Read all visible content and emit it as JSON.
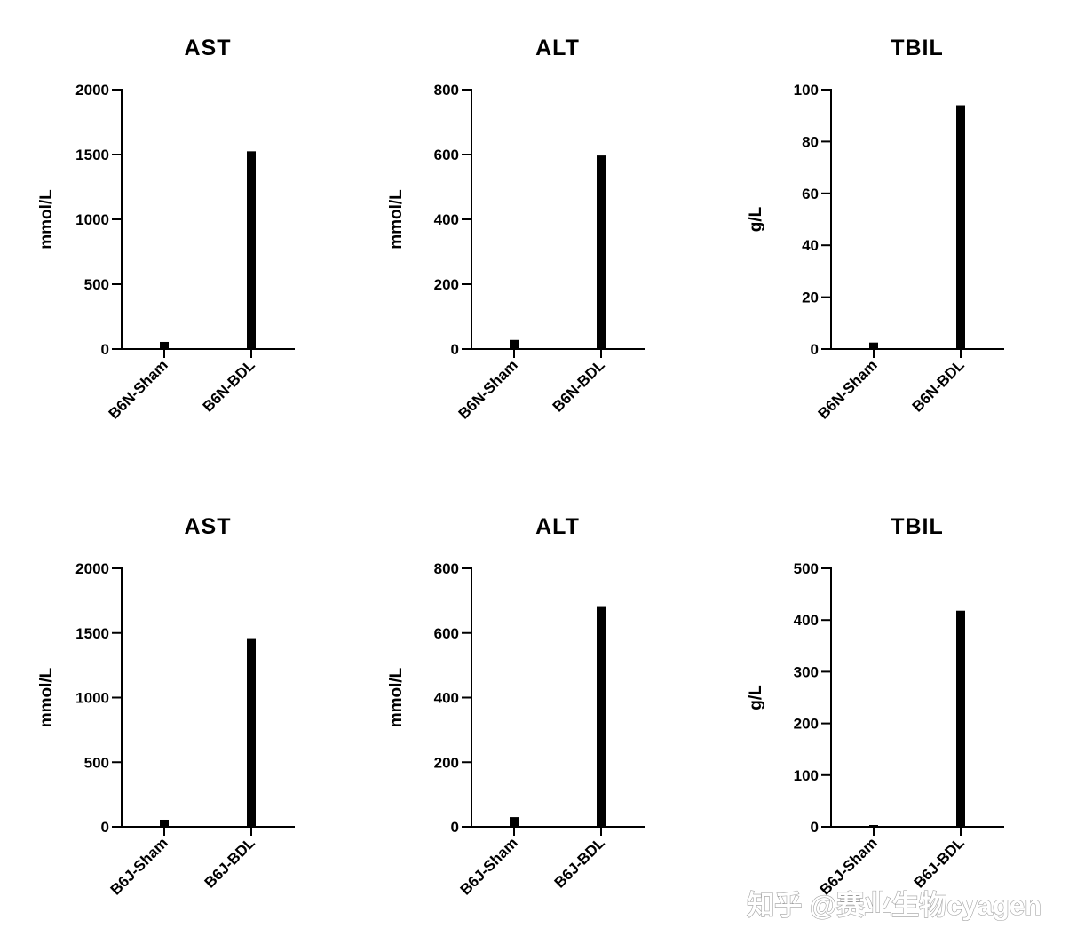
{
  "chart_data": [
    {
      "type": "bar",
      "title": "AST",
      "ylabel": "mmol/L",
      "xlabel": "",
      "categories": [
        "B6N-Sham",
        "B6N-BDL"
      ],
      "values": [
        55,
        1525
      ],
      "ylim": [
        0,
        2000
      ],
      "yticks": [
        0,
        500,
        1000,
        1500,
        2000
      ],
      "color": "#000000",
      "grid": false,
      "legend": "none"
    },
    {
      "type": "bar",
      "title": "ALT",
      "ylabel": "mmol/L",
      "xlabel": "",
      "categories": [
        "B6N-Sham",
        "B6N-BDL"
      ],
      "values": [
        28,
        597
      ],
      "ylim": [
        0,
        800
      ],
      "yticks": [
        0,
        200,
        400,
        600,
        800
      ],
      "color": "#000000",
      "grid": false,
      "legend": "none"
    },
    {
      "type": "bar",
      "title": "TBIL",
      "ylabel": "g/L",
      "xlabel": "",
      "categories": [
        "B6N-Sham",
        "B6N-BDL"
      ],
      "values": [
        2.5,
        94
      ],
      "ylim": [
        0,
        100
      ],
      "yticks": [
        0,
        20,
        40,
        60,
        80,
        100
      ],
      "color": "#000000",
      "grid": false,
      "legend": "none"
    },
    {
      "type": "bar",
      "title": "AST",
      "ylabel": "mmol/L",
      "xlabel": "",
      "categories": [
        "B6J-Sham",
        "B6J-BDL"
      ],
      "values": [
        55,
        1460
      ],
      "ylim": [
        0,
        2000
      ],
      "yticks": [
        0,
        500,
        1000,
        1500,
        2000
      ],
      "color": "#000000",
      "grid": false,
      "legend": "none"
    },
    {
      "type": "bar",
      "title": "ALT",
      "ylabel": "mmol/L",
      "xlabel": "",
      "categories": [
        "B6J-Sham",
        "B6J-BDL"
      ],
      "values": [
        30,
        683
      ],
      "ylim": [
        0,
        800
      ],
      "yticks": [
        0,
        200,
        400,
        600,
        800
      ],
      "color": "#000000",
      "grid": false,
      "legend": "none"
    },
    {
      "type": "bar",
      "title": "TBIL",
      "ylabel": "g/L",
      "xlabel": "",
      "categories": [
        "B6J-Sham",
        "B6J-BDL"
      ],
      "values": [
        3,
        418
      ],
      "ylim": [
        0,
        500
      ],
      "yticks": [
        0,
        100,
        200,
        300,
        400,
        500
      ],
      "color": "#000000",
      "grid": false,
      "legend": "none"
    }
  ],
  "watermark": "知乎 @赛业生物cyagen"
}
